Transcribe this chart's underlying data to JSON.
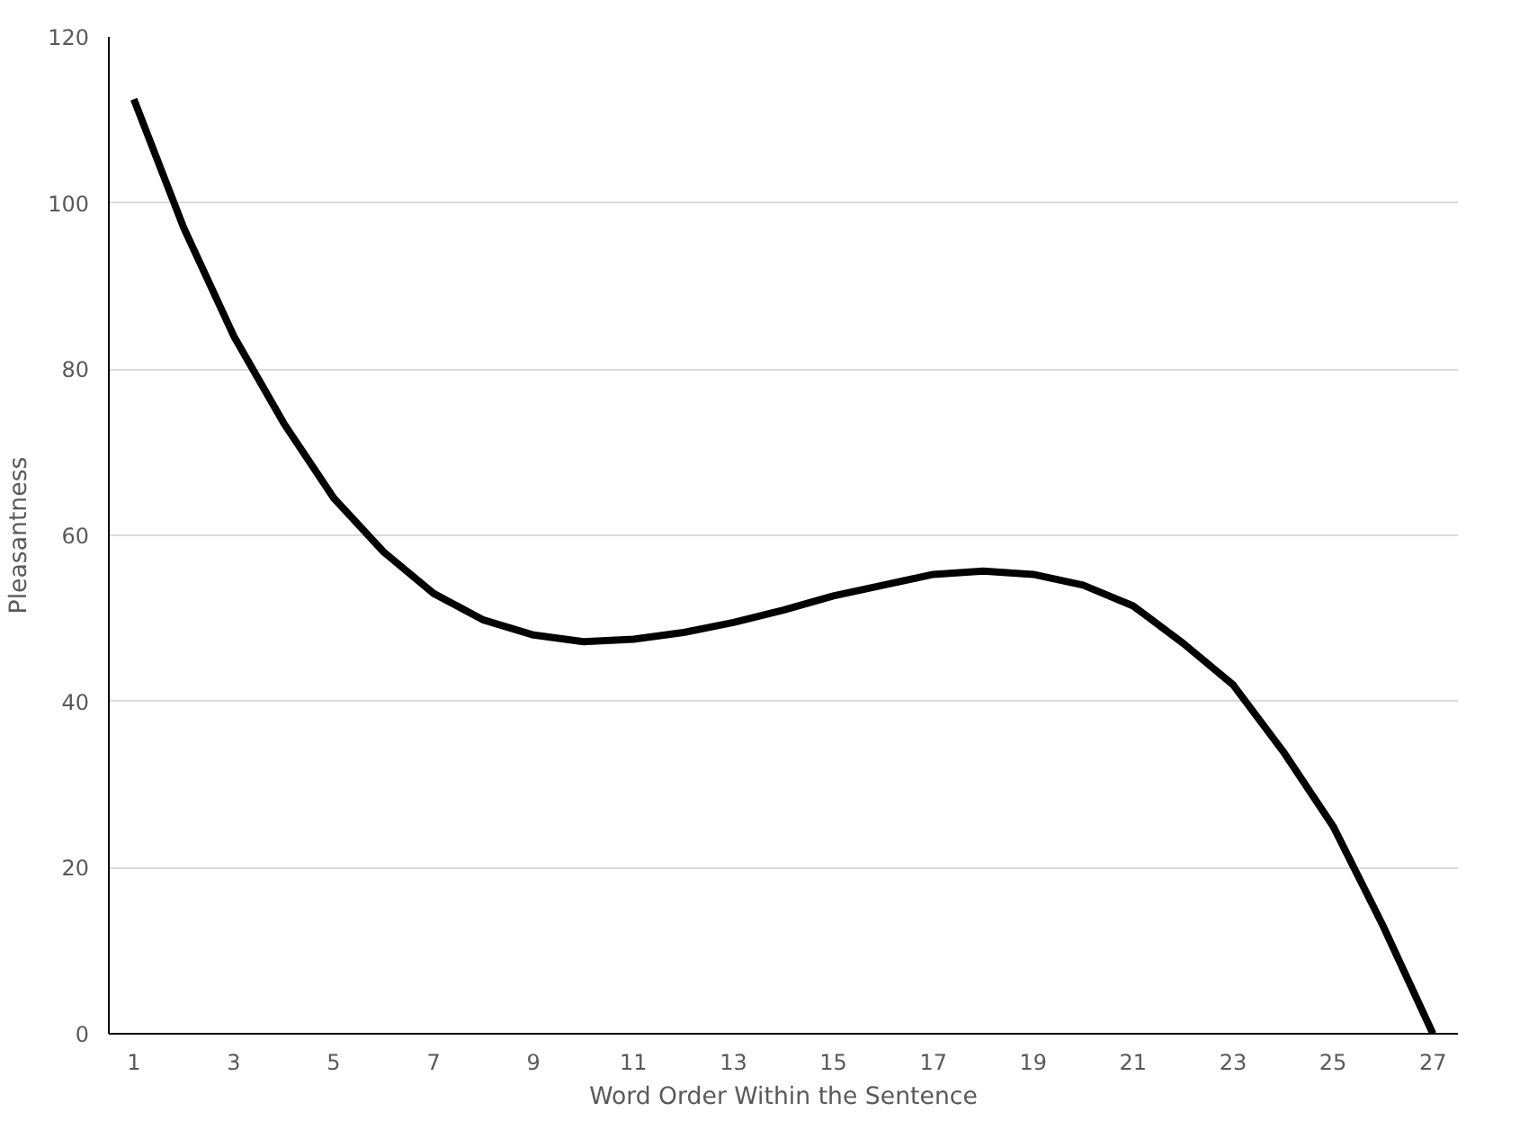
{
  "chart_data": {
    "type": "line",
    "xlabel": "Word Order Within the Sentence",
    "ylabel": "Pleasantness",
    "x": [
      1,
      2,
      3,
      4,
      5,
      6,
      7,
      8,
      9,
      10,
      11,
      12,
      13,
      14,
      15,
      16,
      17,
      18,
      19,
      20,
      21,
      22,
      23,
      24,
      25,
      26,
      27
    ],
    "xlim": [
      0.5,
      27.5
    ],
    "xticks": [
      1,
      3,
      5,
      7,
      9,
      11,
      13,
      15,
      17,
      19,
      21,
      23,
      25,
      27
    ],
    "series": [
      {
        "color": "#000000",
        "values": [
          112.5,
          97,
          84,
          73.5,
          64.5,
          58,
          53,
          49.8,
          48,
          47.2,
          47.5,
          48.3,
          49.5,
          51,
          52.7,
          54,
          55.3,
          55.7,
          55.3,
          54,
          51.5,
          47,
          42,
          34,
          25,
          13,
          0
        ]
      }
    ],
    "ylim": [
      0,
      120
    ],
    "yticks": [
      0,
      20,
      40,
      60,
      80,
      100,
      120
    ],
    "grid": "y",
    "marker": "none",
    "line_style": "solid"
  }
}
